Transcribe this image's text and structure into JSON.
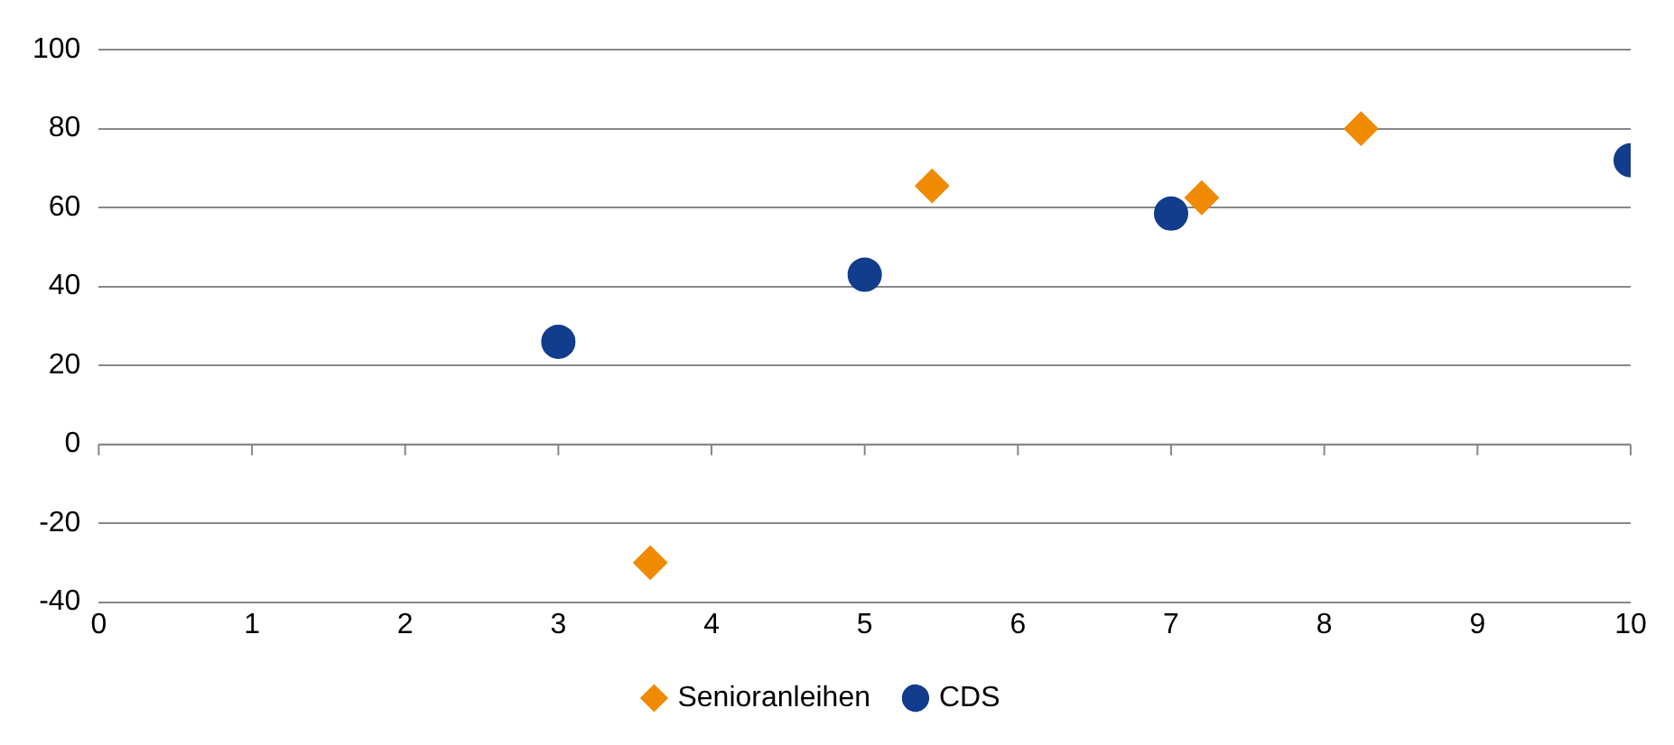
{
  "chart_data": {
    "type": "scatter",
    "xlim": [
      0,
      10
    ],
    "xticks": [
      0,
      1,
      2,
      3,
      4,
      5,
      6,
      7,
      8,
      9,
      10
    ],
    "ylim": [
      -40,
      100
    ],
    "yticks": [
      -40,
      -20,
      0,
      20,
      40,
      60,
      80,
      100
    ],
    "grid": "y",
    "legend": "bottom",
    "series": [
      {
        "name": "Senioranleihen",
        "color": "#f08a00",
        "marker": "diamond",
        "x": [
          3.6,
          5.44,
          7.2,
          8.24
        ],
        "values": [
          -30,
          65.5,
          62.5,
          80
        ]
      },
      {
        "name": "CDS",
        "color": "#123c8c",
        "marker": "circle",
        "x": [
          3,
          5,
          7,
          10
        ],
        "values": [
          26,
          43,
          58.5,
          72
        ]
      }
    ]
  }
}
